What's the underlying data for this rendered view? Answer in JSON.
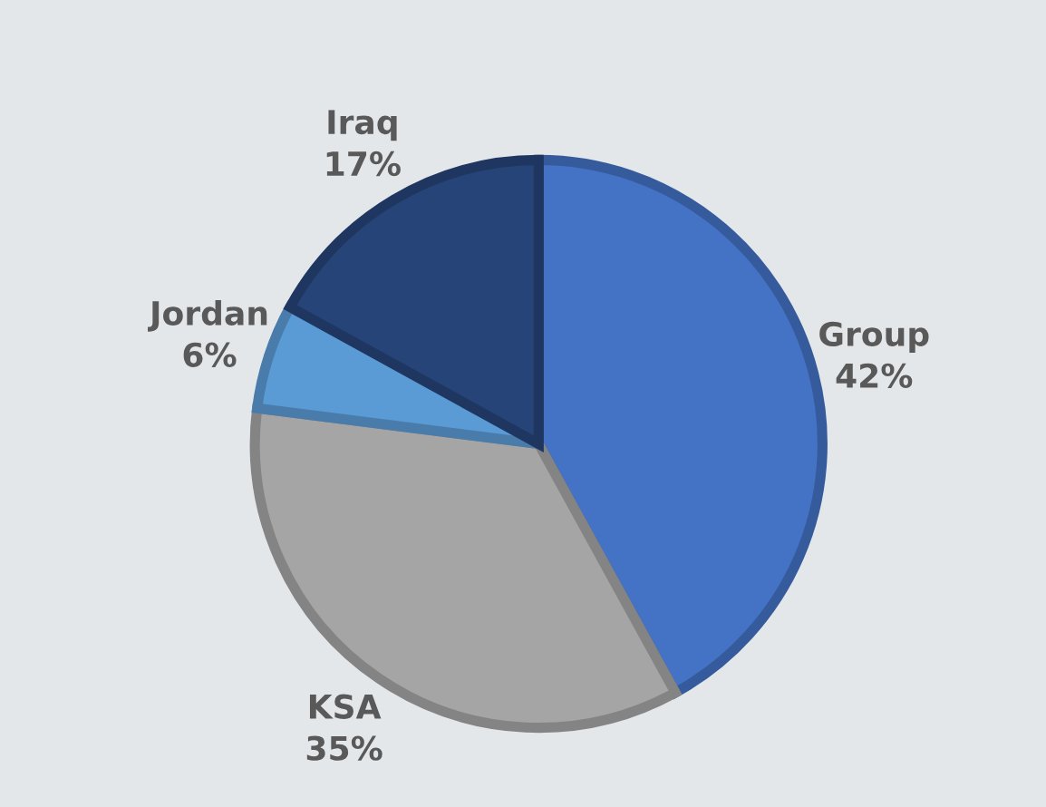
{
  "chart_data": {
    "type": "pie",
    "categories": [
      "Group",
      "KSA",
      "Jordan",
      "Iraq"
    ],
    "values": [
      42,
      35,
      6,
      17
    ],
    "colors": [
      "#4472c4",
      "#a5a5a5",
      "#5b9bd5",
      "#264478"
    ],
    "value_labels": [
      "42%",
      "35%",
      "6%",
      "17%"
    ],
    "legend": false
  }
}
